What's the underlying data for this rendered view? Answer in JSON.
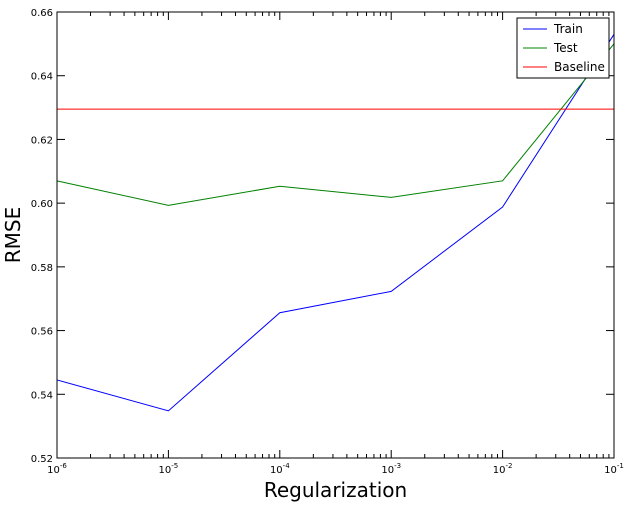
{
  "chart_data": {
    "type": "line",
    "xscale": "log",
    "xlabel": "Regularization",
    "ylabel": "RMSE",
    "xlim": [
      1e-06,
      0.1
    ],
    "ylim": [
      0.52,
      0.66
    ],
    "x": [
      1e-06,
      1e-05,
      0.0001,
      0.001,
      0.01,
      0.1
    ],
    "x_tick_labels": [
      {
        "base": "10",
        "exp": "-6"
      },
      {
        "base": "10",
        "exp": "-5"
      },
      {
        "base": "10",
        "exp": "-4"
      },
      {
        "base": "10",
        "exp": "-3"
      },
      {
        "base": "10",
        "exp": "-2"
      },
      {
        "base": "10",
        "exp": "-1"
      }
    ],
    "y_ticks": [
      "0.52",
      "0.54",
      "0.56",
      "0.58",
      "0.60",
      "0.62",
      "0.64",
      "0.66"
    ],
    "series": [
      {
        "name": "Train",
        "color": "#0000ff",
        "values": [
          0.5445,
          0.5348,
          0.5656,
          0.5723,
          0.5988,
          0.653
        ]
      },
      {
        "name": "Test",
        "color": "#008000",
        "values": [
          0.607,
          0.5993,
          0.6053,
          0.6018,
          0.607,
          0.65
        ]
      },
      {
        "name": "Baseline",
        "color": "#ff0000",
        "values": [
          0.6295,
          0.6295,
          0.6295,
          0.6295,
          0.6295,
          0.6295
        ]
      }
    ],
    "legend": {
      "position": "top-right"
    },
    "grid": false
  }
}
